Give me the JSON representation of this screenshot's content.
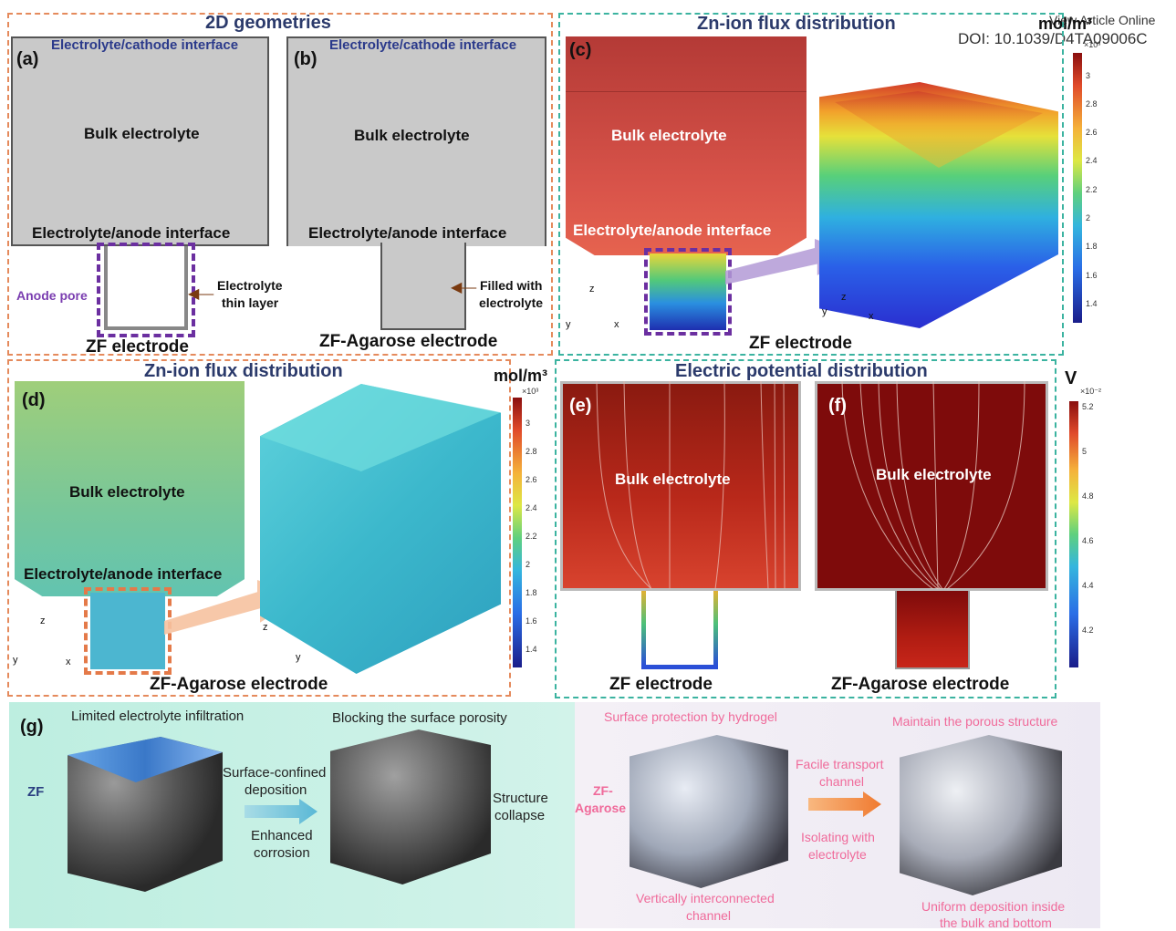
{
  "watermark": {
    "line1": "View Article Online",
    "line2": "DOI: 10.1039/D4TA09006C"
  },
  "panel_ab": {
    "header": "2D geometries",
    "a": {
      "tag": "(a)",
      "top": "Electrolyte/cathode interface",
      "bulk": "Bulk electrolyte",
      "anode": "Electrolyte/anode interface",
      "pore": "Anode pore",
      "thin1": "Electrolyte",
      "thin2": "thin layer",
      "caption": "ZF electrode"
    },
    "b": {
      "tag": "(b)",
      "top": "Electrolyte/cathode interface",
      "bulk": "Bulk electrolyte",
      "anode": "Electrolyte/anode interface",
      "filled1": "Filled with",
      "filled2": "electrolyte",
      "caption": "ZF-Agarose electrode"
    }
  },
  "panel_c": {
    "header": "Zn-ion flux distribution",
    "tag": "(c)",
    "unit": "mol/m³",
    "bulk": "Bulk electrolyte",
    "anode": "Electrolyte/anode interface",
    "caption": "ZF electrode",
    "axes1": {
      "z": "z",
      "y": "y",
      "x": "x"
    },
    "axes2": {
      "z": "z",
      "y": "y",
      "x": "x"
    },
    "scale_exp": "×10³",
    "ticks": [
      "3",
      "2.8",
      "2.6",
      "2.4",
      "2.2",
      "2",
      "1.8",
      "1.6",
      "1.4"
    ]
  },
  "panel_d": {
    "header": "Zn-ion flux distribution",
    "tag": "(d)",
    "unit": "mol/m³",
    "bulk": "Bulk electrolyte",
    "anode": "Electrolyte/anode interface",
    "caption": "ZF-Agarose electrode",
    "axes1": {
      "z": "z",
      "y": "y",
      "x": "x"
    },
    "axes2": {
      "z": "z",
      "y": "y"
    },
    "scale_exp": "×10³",
    "ticks": [
      "3",
      "2.8",
      "2.6",
      "2.4",
      "2.2",
      "2",
      "1.8",
      "1.6",
      "1.4"
    ]
  },
  "panel_ef": {
    "header": "Electric potential distribution",
    "e": {
      "tag": "(e)",
      "bulk": "Bulk electrolyte",
      "caption": "ZF electrode"
    },
    "f": {
      "tag": "(f)",
      "bulk": "Bulk electrolyte",
      "caption": "ZF-Agarose electrode"
    },
    "unit": "V",
    "scale_exp": "×10⁻²",
    "ticks": [
      "5.2",
      "5",
      "4.8",
      "4.6",
      "4.4",
      "4.2"
    ]
  },
  "panel_g": {
    "tag": "(g)",
    "zf": "ZF",
    "limited": "Limited electrolyte infiltration",
    "blocking": "Blocking the surface porosity",
    "surf1": "Surface-confined",
    "surf2": "deposition",
    "enh1": "Enhanced",
    "enh2": "corrosion",
    "coll1": "Structure",
    "coll2": "collapse",
    "zfa1": "ZF-",
    "zfa2": "Agarose",
    "protection": "Surface protection by hydrogel",
    "facile1": "Facile transport",
    "facile2": "channel",
    "iso1": "Isolating with",
    "iso2": "electrolyte",
    "vert1": "Vertically interconnected",
    "vert2": "channel",
    "maintain": "Maintain the porous structure",
    "uni1": "Uniform deposition inside",
    "uni2": "the bulk and bottom"
  }
}
